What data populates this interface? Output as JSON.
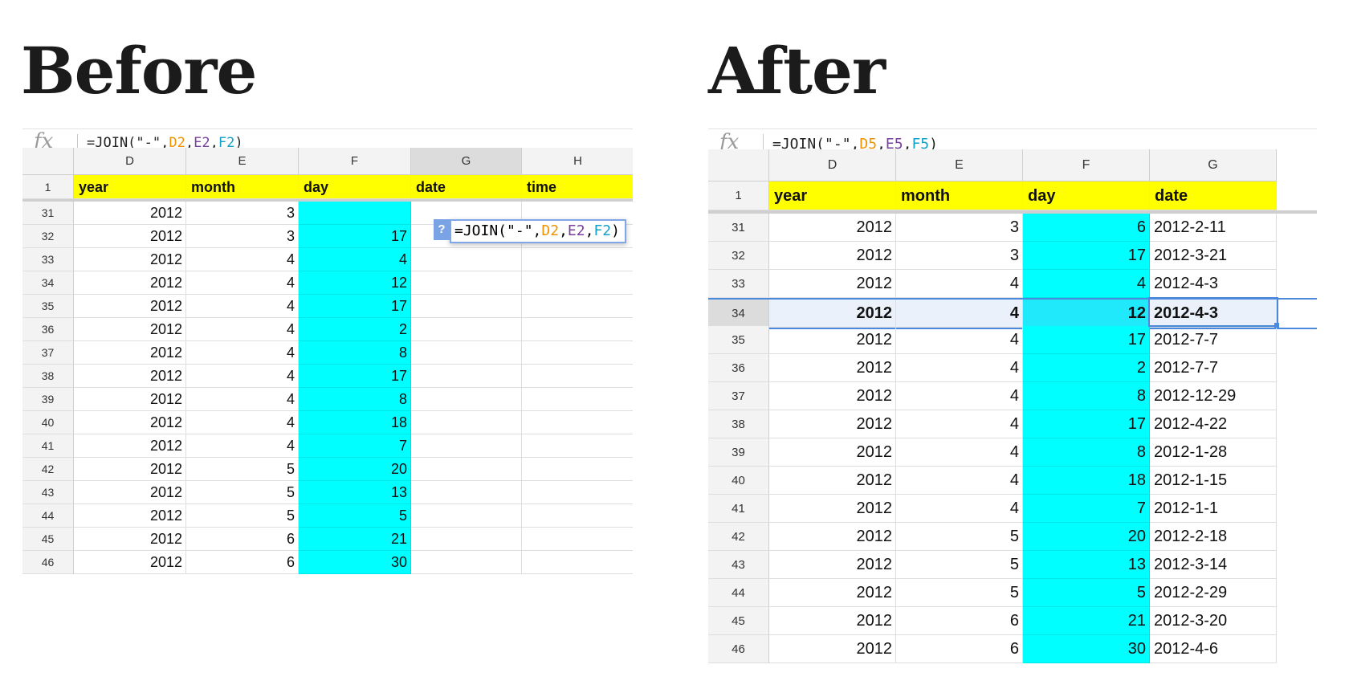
{
  "before": {
    "title": "Before",
    "formula": {
      "prefix": "=JOIN(\"-\",",
      "ref1": "D2",
      "sep1": ",",
      "ref2": "E2",
      "sep2": ",",
      "ref3": "F2",
      "suffix": ")"
    },
    "columns": [
      "D",
      "E",
      "F",
      "G",
      "H"
    ],
    "header_row": {
      "num": "1",
      "cells": [
        "year",
        "month",
        "day",
        "date",
        "time"
      ]
    },
    "popup": {
      "icon": "?",
      "prefix": "=JOIN(\"-\",",
      "ref1": "D2",
      "sep1": ",",
      "ref2": "E2",
      "sep2": ",",
      "ref3": "F2",
      "suffix": ")"
    },
    "rows": [
      {
        "num": "31",
        "year": "2012",
        "month": "3",
        "day": ""
      },
      {
        "num": "32",
        "year": "2012",
        "month": "3",
        "day": "17"
      },
      {
        "num": "33",
        "year": "2012",
        "month": "4",
        "day": "4"
      },
      {
        "num": "34",
        "year": "2012",
        "month": "4",
        "day": "12"
      },
      {
        "num": "35",
        "year": "2012",
        "month": "4",
        "day": "17"
      },
      {
        "num": "36",
        "year": "2012",
        "month": "4",
        "day": "2"
      },
      {
        "num": "37",
        "year": "2012",
        "month": "4",
        "day": "8"
      },
      {
        "num": "38",
        "year": "2012",
        "month": "4",
        "day": "17"
      },
      {
        "num": "39",
        "year": "2012",
        "month": "4",
        "day": "8"
      },
      {
        "num": "40",
        "year": "2012",
        "month": "4",
        "day": "18"
      },
      {
        "num": "41",
        "year": "2012",
        "month": "4",
        "day": "7"
      },
      {
        "num": "42",
        "year": "2012",
        "month": "5",
        "day": "20"
      },
      {
        "num": "43",
        "year": "2012",
        "month": "5",
        "day": "13"
      },
      {
        "num": "44",
        "year": "2012",
        "month": "5",
        "day": "5"
      },
      {
        "num": "45",
        "year": "2012",
        "month": "6",
        "day": "21"
      },
      {
        "num": "46",
        "year": "2012",
        "month": "6",
        "day": "30"
      }
    ]
  },
  "after": {
    "title": "After",
    "formula": {
      "prefix": "=JOIN(\"-\",",
      "ref1": "D5",
      "sep1": ",",
      "ref2": "E5",
      "sep2": ",",
      "ref3": "F5",
      "suffix": ")"
    },
    "columns": [
      "D",
      "E",
      "F",
      "G"
    ],
    "header_row": {
      "num": "1",
      "cells": [
        "year",
        "month",
        "day",
        "date"
      ]
    },
    "active_row": "34",
    "rows": [
      {
        "num": "31",
        "year": "2012",
        "month": "3",
        "day": "6",
        "date": "2012-2-11"
      },
      {
        "num": "32",
        "year": "2012",
        "month": "3",
        "day": "17",
        "date": "2012-3-21"
      },
      {
        "num": "33",
        "year": "2012",
        "month": "4",
        "day": "4",
        "date": "2012-4-3"
      },
      {
        "num": "34",
        "year": "2012",
        "month": "4",
        "day": "12",
        "date": "2012-4-3"
      },
      {
        "num": "35",
        "year": "2012",
        "month": "4",
        "day": "17",
        "date": "2012-7-7"
      },
      {
        "num": "36",
        "year": "2012",
        "month": "4",
        "day": "2",
        "date": "2012-7-7"
      },
      {
        "num": "37",
        "year": "2012",
        "month": "4",
        "day": "8",
        "date": "2012-12-29"
      },
      {
        "num": "38",
        "year": "2012",
        "month": "4",
        "day": "17",
        "date": "2012-4-22"
      },
      {
        "num": "39",
        "year": "2012",
        "month": "4",
        "day": "8",
        "date": "2012-1-28"
      },
      {
        "num": "40",
        "year": "2012",
        "month": "4",
        "day": "18",
        "date": "2012-1-15"
      },
      {
        "num": "41",
        "year": "2012",
        "month": "4",
        "day": "7",
        "date": "2012-1-1"
      },
      {
        "num": "42",
        "year": "2012",
        "month": "5",
        "day": "20",
        "date": "2012-2-18"
      },
      {
        "num": "43",
        "year": "2012",
        "month": "5",
        "day": "13",
        "date": "2012-3-14"
      },
      {
        "num": "44",
        "year": "2012",
        "month": "5",
        "day": "5",
        "date": "2012-2-29"
      },
      {
        "num": "45",
        "year": "2012",
        "month": "6",
        "day": "21",
        "date": "2012-3-20"
      },
      {
        "num": "46",
        "year": "2012",
        "month": "6",
        "day": "30",
        "date": "2012-4-6"
      }
    ]
  },
  "colors": {
    "header_yellow": "#ffff00",
    "day_cyan": "#00ffff",
    "selection_blue": "#4a89dc"
  }
}
